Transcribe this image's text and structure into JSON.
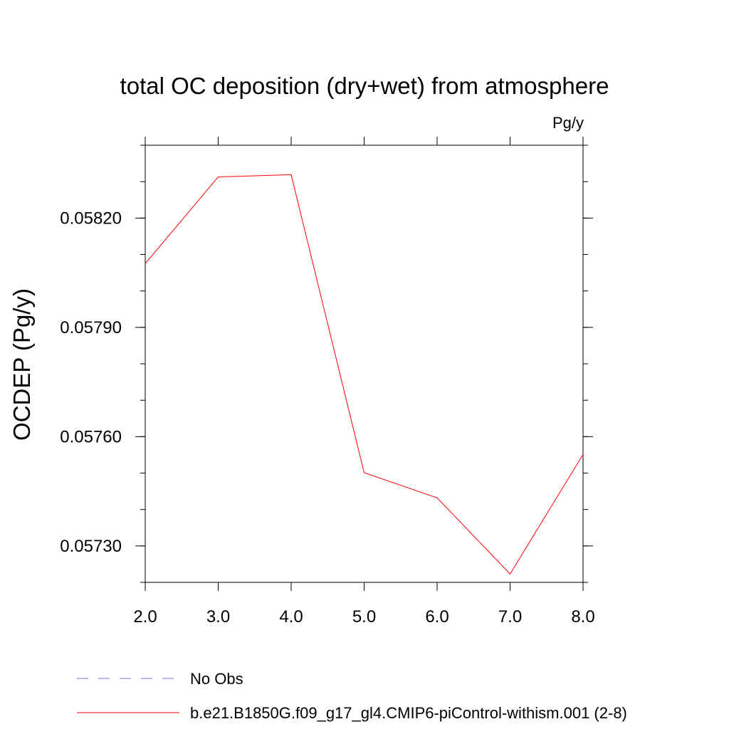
{
  "chart_data": {
    "type": "line",
    "title": "total OC deposition (dry+wet) from atmosphere",
    "units": "Pg/y",
    "xlabel": "",
    "ylabel": "OCDEP  (Pg/y)",
    "xlim": [
      2.0,
      8.0
    ],
    "ylim": [
      0.0572,
      0.0584
    ],
    "xticks": [
      2.0,
      3.0,
      4.0,
      5.0,
      6.0,
      7.0,
      8.0
    ],
    "xtick_labels": [
      "2.0",
      "3.0",
      "4.0",
      "5.0",
      "6.0",
      "7.0",
      "8.0"
    ],
    "yticks": [
      0.0573,
      0.0576,
      0.0579,
      0.0582
    ],
    "ytick_labels": [
      "0.05730",
      "0.05760",
      "0.05790",
      "0.05820"
    ],
    "grid": false,
    "legend_position": "bottom",
    "legend": [
      {
        "label": "No Obs",
        "color": "#7b68c8",
        "style": "dashed"
      },
      {
        "label": "b.e21.B1850G.f09_g17_gl4.CMIP6-piControl-withism.001 (2-8)",
        "color": "#ff0000",
        "style": "solid"
      }
    ],
    "series": [
      {
        "name": "b.e21.B1850G.f09_g17_gl4.CMIP6-piControl-withism.001 (2-8)",
        "color": "#ff0000",
        "x": [
          2.0,
          3.0,
          4.0,
          5.0,
          6.0,
          7.0,
          8.0
        ],
        "y": [
          0.058075,
          0.058313,
          0.058319,
          0.057501,
          0.057432,
          0.057223,
          0.057551
        ]
      }
    ]
  }
}
